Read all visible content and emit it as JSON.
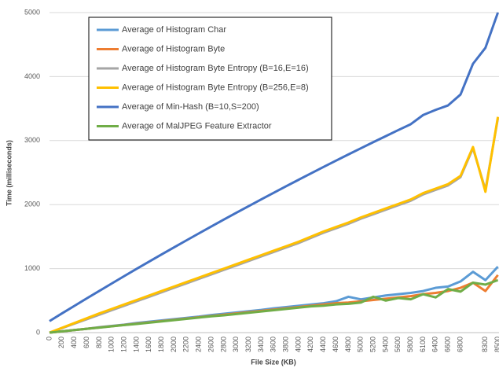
{
  "chart_data": {
    "type": "line",
    "x_label": "File Size (KB)",
    "y_label": "Time (milliseconds)",
    "categories": [
      "0",
      "200",
      "400",
      "600",
      "800",
      "1000",
      "1200",
      "1400",
      "1600",
      "1800",
      "2000",
      "2200",
      "2400",
      "2600",
      "2800",
      "3000",
      "3200",
      "3400",
      "3600",
      "3800",
      "4000",
      "4200",
      "4400",
      "4600",
      "4800",
      "5000",
      "5200",
      "5400",
      "5600",
      "5800",
      "6100",
      "6400",
      "6600",
      "6800",
      null,
      "8300",
      "8500"
    ],
    "series": [
      {
        "name": "Average of Histogram Char",
        "color": "#5b9bd5",
        "values": [
          0,
          20,
          40,
          60,
          85,
          105,
          125,
          150,
          170,
          190,
          210,
          230,
          250,
          275,
          295,
          315,
          335,
          355,
          380,
          400,
          420,
          440,
          460,
          490,
          560,
          520,
          550,
          580,
          600,
          620,
          650,
          700,
          720,
          800,
          950,
          820,
          1030
        ]
      },
      {
        "name": "Average of Histogram Byte",
        "color": "#ed7d31",
        "values": [
          0,
          20,
          40,
          60,
          80,
          100,
          120,
          140,
          160,
          180,
          200,
          220,
          240,
          260,
          280,
          300,
          320,
          340,
          360,
          380,
          400,
          420,
          440,
          460,
          470,
          490,
          510,
          530,
          550,
          570,
          600,
          620,
          650,
          700,
          780,
          650,
          900
        ]
      },
      {
        "name": "Average of Histogram Byte Entropy (B=16,E=16)",
        "color": "#a5a5a5",
        "values": [
          0,
          70,
          140,
          210,
          280,
          350,
          420,
          490,
          560,
          630,
          700,
          770,
          840,
          910,
          980,
          1050,
          1120,
          1190,
          1260,
          1330,
          1400,
          1480,
          1560,
          1630,
          1700,
          1780,
          1850,
          1920,
          1990,
          2060,
          2160,
          2230,
          2300,
          2430,
          2880,
          2230,
          3350
        ]
      },
      {
        "name": "Average of Histogram Byte Entropy (B=256,E=8)",
        "color": "#ffc000",
        "values": [
          0,
          75,
          150,
          225,
          300,
          370,
          440,
          510,
          580,
          650,
          720,
          790,
          860,
          930,
          1000,
          1070,
          1140,
          1210,
          1280,
          1350,
          1420,
          1500,
          1580,
          1650,
          1720,
          1800,
          1870,
          1940,
          2010,
          2080,
          2180,
          2250,
          2320,
          2450,
          2900,
          2200,
          3370
        ]
      },
      {
        "name": "Average of Min-Hash (B=10,S=200)",
        "color": "#4472c4",
        "values": [
          180,
          300,
          418,
          536,
          652,
          768,
          883,
          997,
          1109,
          1221,
          1332,
          1442,
          1551,
          1659,
          1766,
          1872,
          1977,
          2081,
          2184,
          2287,
          2388,
          2489,
          2588,
          2687,
          2784,
          2880,
          2976,
          3070,
          3164,
          3256,
          3400,
          3480,
          3550,
          3720,
          4200,
          4450,
          5000
        ]
      },
      {
        "name": "Average of MalJPEG Feature Extractor",
        "color": "#70ad47",
        "values": [
          0,
          20,
          40,
          60,
          78,
          98,
          118,
          135,
          155,
          175,
          195,
          215,
          235,
          255,
          270,
          290,
          310,
          330,
          350,
          370,
          390,
          410,
          420,
          440,
          450,
          470,
          560,
          500,
          540,
          520,
          600,
          550,
          680,
          640,
          780,
          750,
          820
        ]
      }
    ],
    "ylim": [
      0,
      5000
    ],
    "yticks": [
      0,
      1000,
      2000,
      3000,
      4000,
      5000
    ],
    "grid": true
  }
}
